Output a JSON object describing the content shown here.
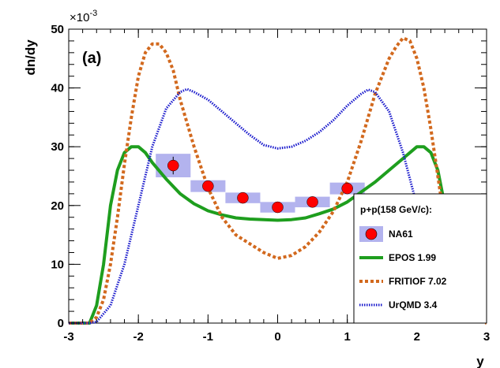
{
  "chart_data": {
    "type": "line",
    "panel_label": "(a)",
    "xlabel": "y",
    "ylabel": "dn/dy",
    "y_multiplier": "×10",
    "y_multiplier_exponent": "-3",
    "xlim": [
      -3,
      3
    ],
    "ylim": [
      0,
      50
    ],
    "x_ticks": [
      "-3",
      "-2",
      "-1",
      "0",
      "1",
      "2",
      "3"
    ],
    "y_ticks": [
      "0",
      "10",
      "20",
      "30",
      "40",
      "50"
    ],
    "legend": {
      "title": "p+p(158 GeV/c):",
      "entries": [
        "NA61",
        "EPOS 1.99",
        "FRITIOF 7.02",
        "UrQMD 3.4"
      ]
    },
    "data_points": {
      "name": "NA61",
      "color": "#ff0000",
      "sys_color": "#b3b3ee",
      "x": [
        -1.5,
        -1.0,
        -0.5,
        0.0,
        0.5,
        1.0
      ],
      "y": [
        26.8,
        23.3,
        21.3,
        19.7,
        20.6,
        22.9
      ],
      "stat_err": [
        1.5,
        0.6,
        0.5,
        0.5,
        0.5,
        0.6
      ],
      "sys_err": [
        2.0,
        1.0,
        0.9,
        0.9,
        0.9,
        1.0
      ]
    },
    "series": [
      {
        "name": "EPOS 1.99",
        "color": "#1e9e1e",
        "style": "solid",
        "x": [
          -3.0,
          -2.7,
          -2.6,
          -2.5,
          -2.4,
          -2.3,
          -2.2,
          -2.1,
          -2.0,
          -1.9,
          -1.8,
          -1.6,
          -1.4,
          -1.2,
          -1.0,
          -0.8,
          -0.6,
          -0.4,
          -0.2,
          0.0,
          0.2,
          0.4,
          0.6,
          0.8,
          1.0,
          1.2,
          1.4,
          1.6,
          1.8,
          1.9,
          2.0,
          2.1,
          2.2,
          2.3,
          2.4
        ],
        "values": [
          0.0,
          0.0,
          3.0,
          10.0,
          20.0,
          26.0,
          29.0,
          30.0,
          30.0,
          29.0,
          27.3,
          24.5,
          22.0,
          20.3,
          19.1,
          18.4,
          17.9,
          17.7,
          17.6,
          17.5,
          17.6,
          17.9,
          18.6,
          19.4,
          20.6,
          22.3,
          24.0,
          26.0,
          28.0,
          29.0,
          30.0,
          30.0,
          29.0,
          26.0,
          20.0
        ]
      },
      {
        "name": "FRITIOF 7.02",
        "color": "#d2691e",
        "style": "dashed",
        "x": [
          -3.0,
          -2.7,
          -2.6,
          -2.5,
          -2.4,
          -2.3,
          -2.2,
          -2.1,
          -2.0,
          -1.9,
          -1.8,
          -1.7,
          -1.6,
          -1.5,
          -1.4,
          -1.2,
          -1.0,
          -0.8,
          -0.6,
          -0.4,
          -0.2,
          0.0,
          0.2,
          0.4,
          0.6,
          0.8,
          1.0,
          1.2,
          1.4,
          1.6,
          1.7,
          1.8,
          1.9,
          2.0,
          2.1,
          2.2,
          2.3,
          2.4,
          2.5,
          2.6,
          2.7,
          3.0
        ],
        "values": [
          0.0,
          0.0,
          1.0,
          4.0,
          10.0,
          18.0,
          27.0,
          35.0,
          42.0,
          46.0,
          47.5,
          47.5,
          46.0,
          43.0,
          38.0,
          30.0,
          23.0,
          18.0,
          15.0,
          13.5,
          12.0,
          11.0,
          11.5,
          13.0,
          15.5,
          19.0,
          24.0,
          31.0,
          39.0,
          45.0,
          47.0,
          48.5,
          48.0,
          45.0,
          40.0,
          33.0,
          25.0,
          17.0,
          10.0,
          4.0,
          1.0,
          0.0
        ]
      },
      {
        "name": "UrQMD 3.4",
        "color": "#1a1acc",
        "style": "dotted",
        "x": [
          -3.0,
          -2.7,
          -2.6,
          -2.4,
          -2.2,
          -2.0,
          -1.8,
          -1.6,
          -1.4,
          -1.3,
          -1.2,
          -1.0,
          -0.8,
          -0.6,
          -0.4,
          -0.2,
          0.0,
          0.2,
          0.4,
          0.6,
          0.8,
          1.0,
          1.2,
          1.3,
          1.4,
          1.6,
          1.8,
          2.0
        ],
        "values": [
          0.0,
          0.0,
          0.2,
          3.0,
          10.0,
          20.0,
          30.0,
          36.5,
          39.3,
          39.8,
          39.3,
          38.0,
          36.0,
          34.0,
          32.0,
          30.3,
          29.7,
          30.0,
          31.0,
          32.5,
          34.5,
          37.0,
          39.0,
          39.7,
          39.3,
          36.0,
          29.0,
          20.0
        ]
      }
    ]
  }
}
